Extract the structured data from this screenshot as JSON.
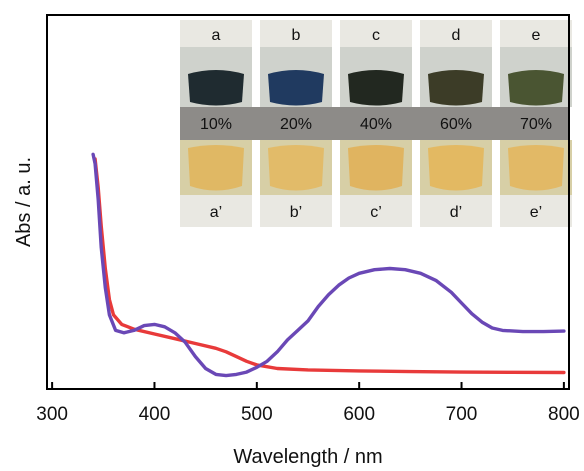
{
  "chart_data": {
    "type": "line",
    "title": "",
    "xlabel": "Wavelength / nm",
    "ylabel": "Abs / a. u.",
    "xlim": [
      295,
      805
    ],
    "ylim": [
      0,
      1
    ],
    "x_ticks": [
      300,
      400,
      500,
      600,
      700,
      800
    ],
    "y_ticks_shown": false,
    "grid": false,
    "legend": "none",
    "series": [
      {
        "color": "#e83a3a",
        "points": [
          [
            342,
            0.92
          ],
          [
            345,
            0.8
          ],
          [
            348,
            0.64
          ],
          [
            352,
            0.46
          ],
          [
            356,
            0.33
          ],
          [
            360,
            0.265
          ],
          [
            368,
            0.225
          ],
          [
            380,
            0.205
          ],
          [
            400,
            0.185
          ],
          [
            420,
            0.165
          ],
          [
            440,
            0.145
          ],
          [
            460,
            0.125
          ],
          [
            470,
            0.11
          ],
          [
            480,
            0.09
          ],
          [
            490,
            0.07
          ],
          [
            500,
            0.055
          ],
          [
            520,
            0.04
          ],
          [
            550,
            0.034
          ],
          [
            600,
            0.03
          ],
          [
            650,
            0.027
          ],
          [
            700,
            0.025
          ],
          [
            750,
            0.024
          ],
          [
            800,
            0.023
          ]
        ]
      },
      {
        "color": "#6a48b6",
        "points": [
          [
            340,
            0.94
          ],
          [
            342,
            0.9
          ],
          [
            345,
            0.75
          ],
          [
            348,
            0.55
          ],
          [
            352,
            0.38
          ],
          [
            356,
            0.265
          ],
          [
            362,
            0.2
          ],
          [
            370,
            0.19
          ],
          [
            380,
            0.2
          ],
          [
            390,
            0.22
          ],
          [
            400,
            0.225
          ],
          [
            410,
            0.215
          ],
          [
            420,
            0.19
          ],
          [
            430,
            0.15
          ],
          [
            440,
            0.09
          ],
          [
            450,
            0.04
          ],
          [
            460,
            0.015
          ],
          [
            470,
            0.01
          ],
          [
            480,
            0.015
          ],
          [
            490,
            0.025
          ],
          [
            500,
            0.045
          ],
          [
            510,
            0.07
          ],
          [
            520,
            0.11
          ],
          [
            530,
            0.16
          ],
          [
            540,
            0.2
          ],
          [
            550,
            0.24
          ],
          [
            560,
            0.3
          ],
          [
            570,
            0.35
          ],
          [
            580,
            0.39
          ],
          [
            590,
            0.42
          ],
          [
            600,
            0.44
          ],
          [
            615,
            0.455
          ],
          [
            630,
            0.46
          ],
          [
            645,
            0.455
          ],
          [
            660,
            0.44
          ],
          [
            675,
            0.41
          ],
          [
            690,
            0.36
          ],
          [
            700,
            0.315
          ],
          [
            710,
            0.27
          ],
          [
            720,
            0.235
          ],
          [
            730,
            0.21
          ],
          [
            740,
            0.2
          ],
          [
            760,
            0.195
          ],
          [
            780,
            0.195
          ],
          [
            800,
            0.197
          ]
        ]
      }
    ]
  },
  "inset": {
    "top_labels": [
      "a",
      "b",
      "c",
      "d",
      "e"
    ],
    "percentages": [
      "10%",
      "20%",
      "40%",
      "60%",
      "70%"
    ],
    "bottom_labels": [
      "a’",
      "b’",
      "c’",
      "d’",
      "e’"
    ],
    "colors": {
      "label_bg": "#e9e8e2",
      "band": "#8d8b88",
      "top_vial_bg": "#cfd2cc",
      "bottom_vial_bg": "#d7cfa6",
      "top_liquid": [
        "#1f2b30",
        "#203a60",
        "#222820",
        "#3c3c27",
        "#4a5532"
      ],
      "bottom_liquid": [
        "#e0b864",
        "#e2bb69",
        "#e0b460",
        "#e3b962",
        "#e2b966"
      ]
    }
  }
}
